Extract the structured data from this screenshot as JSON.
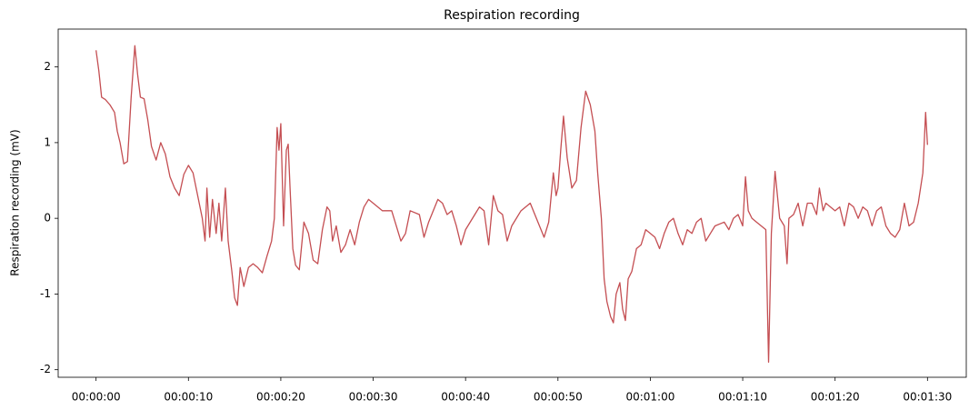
{
  "chart_data": {
    "type": "line",
    "title": "Respiration recording",
    "y_label": "Respiration recording (mV)",
    "xlim": [
      -4.1,
      94.2
    ],
    "ylim": [
      -2.1,
      2.5
    ],
    "xticks": [
      {
        "value": 0,
        "label": "00:00:00"
      },
      {
        "value": 10,
        "label": "00:00:10"
      },
      {
        "value": 20,
        "label": "00:00:20"
      },
      {
        "value": 30,
        "label": "00:00:30"
      },
      {
        "value": 40,
        "label": "00:00:40"
      },
      {
        "value": 50,
        "label": "00:00:50"
      },
      {
        "value": 60,
        "label": "00:01:00"
      },
      {
        "value": 70,
        "label": "00:01:10"
      },
      {
        "value": 80,
        "label": "00:01:20"
      },
      {
        "value": 90,
        "label": "00:01:30"
      }
    ],
    "yticks": [
      -2,
      -1,
      0,
      1,
      2
    ],
    "grid": false,
    "x": [
      0,
      0.3,
      0.6,
      1,
      1.5,
      2,
      2.3,
      2.6,
      3,
      3.4,
      3.8,
      4.2,
      4.5,
      4.8,
      5.2,
      5.6,
      6,
      6.5,
      7,
      7.5,
      8,
      8.5,
      9,
      9.5,
      10,
      10.5,
      11,
      11.5,
      11.8,
      12,
      12.3,
      12.6,
      13,
      13.3,
      13.6,
      14,
      14.3,
      14.7,
      15,
      15.3,
      15.6,
      16,
      16.5,
      17,
      17.5,
      18,
      18.5,
      19,
      19.3,
      19.6,
      19.8,
      20,
      20.3,
      20.6,
      20.8,
      21,
      21.3,
      21.6,
      22,
      22.5,
      23,
      23.5,
      24,
      24.5,
      25,
      25.3,
      25.6,
      26,
      26.5,
      27,
      27.5,
      28,
      28.5,
      29,
      29.5,
      30,
      31,
      32,
      32.5,
      33,
      33.5,
      34,
      35,
      35.5,
      36,
      37,
      37.5,
      38,
      38.5,
      39,
      39.5,
      40,
      41,
      41.5,
      42,
      42.5,
      43,
      43.5,
      44,
      44.5,
      45,
      46,
      47,
      48,
      48.5,
      49,
      49.5,
      49.8,
      50,
      50.3,
      50.6,
      51,
      51.5,
      52,
      52.5,
      53,
      53.5,
      54,
      54.3,
      54.7,
      55,
      55.3,
      55.7,
      56,
      56.3,
      56.7,
      57,
      57.3,
      57.6,
      58,
      58.5,
      59,
      59.5,
      60,
      60.5,
      61,
      61.5,
      62,
      62.5,
      63,
      63.5,
      64,
      64.5,
      65,
      65.5,
      66,
      66.5,
      67,
      68,
      68.5,
      69,
      69.5,
      70,
      70.3,
      70.6,
      71,
      71.5,
      72,
      72.5,
      72.8,
      73.1,
      73.5,
      74,
      74.5,
      74.8,
      75,
      75.5,
      76,
      76.5,
      77,
      77.5,
      78,
      78.3,
      78.7,
      79,
      80,
      80.5,
      81,
      81.5,
      82,
      82.5,
      83,
      83.5,
      84,
      84.5,
      85,
      85.5,
      86,
      86.5,
      87,
      87.5,
      88,
      88.5,
      89,
      89.5,
      89.8,
      90
    ],
    "series": [
      {
        "name": "Respiration recording",
        "color": "#c44e52",
        "values": [
          2.22,
          1.95,
          1.6,
          1.57,
          1.5,
          1.4,
          1.15,
          1.0,
          0.72,
          0.75,
          1.6,
          2.28,
          1.9,
          1.6,
          1.58,
          1.3,
          0.95,
          0.77,
          1.0,
          0.85,
          0.55,
          0.4,
          0.3,
          0.58,
          0.7,
          0.6,
          0.3,
          0.0,
          -0.3,
          0.4,
          -0.25,
          0.25,
          -0.2,
          0.2,
          -0.3,
          0.4,
          -0.3,
          -0.7,
          -1.05,
          -1.15,
          -0.65,
          -0.9,
          -0.65,
          -0.6,
          -0.65,
          -0.72,
          -0.5,
          -0.3,
          0.0,
          1.2,
          0.9,
          1.25,
          -0.1,
          0.9,
          0.98,
          0.4,
          -0.4,
          -0.62,
          -0.68,
          -0.05,
          -0.2,
          -0.55,
          -0.6,
          -0.15,
          0.15,
          0.1,
          -0.3,
          -0.1,
          -0.45,
          -0.35,
          -0.15,
          -0.35,
          -0.05,
          0.15,
          0.25,
          0.2,
          0.1,
          0.1,
          -0.1,
          -0.3,
          -0.2,
          0.1,
          0.05,
          -0.25,
          -0.05,
          0.25,
          0.2,
          0.05,
          0.1,
          -0.1,
          -0.35,
          -0.15,
          0.05,
          0.15,
          0.1,
          -0.35,
          0.3,
          0.1,
          0.05,
          -0.3,
          -0.1,
          0.1,
          0.2,
          -0.1,
          -0.25,
          -0.05,
          0.6,
          0.3,
          0.4,
          0.9,
          1.35,
          0.8,
          0.4,
          0.5,
          1.2,
          1.68,
          1.5,
          1.15,
          0.6,
          0.0,
          -0.8,
          -1.1,
          -1.3,
          -1.38,
          -1.0,
          -0.85,
          -1.2,
          -1.35,
          -0.8,
          -0.7,
          -0.4,
          -0.35,
          -0.15,
          -0.2,
          -0.25,
          -0.4,
          -0.2,
          -0.05,
          0.0,
          -0.2,
          -0.35,
          -0.15,
          -0.2,
          -0.05,
          0.0,
          -0.3,
          -0.2,
          -0.1,
          -0.05,
          -0.15,
          0.0,
          0.05,
          -0.1,
          0.55,
          0.1,
          0.0,
          -0.05,
          -0.1,
          -0.15,
          -1.9,
          -0.2,
          0.62,
          0.0,
          -0.1,
          -0.6,
          0.0,
          0.05,
          0.2,
          -0.1,
          0.2,
          0.2,
          0.05,
          0.4,
          0.1,
          0.2,
          0.1,
          0.15,
          -0.1,
          0.2,
          0.15,
          0.0,
          0.15,
          0.1,
          -0.1,
          0.1,
          0.15,
          -0.1,
          -0.2,
          -0.25,
          -0.15,
          0.2,
          -0.1,
          -0.05,
          0.2,
          0.6,
          1.4,
          0.97
        ]
      }
    ]
  }
}
